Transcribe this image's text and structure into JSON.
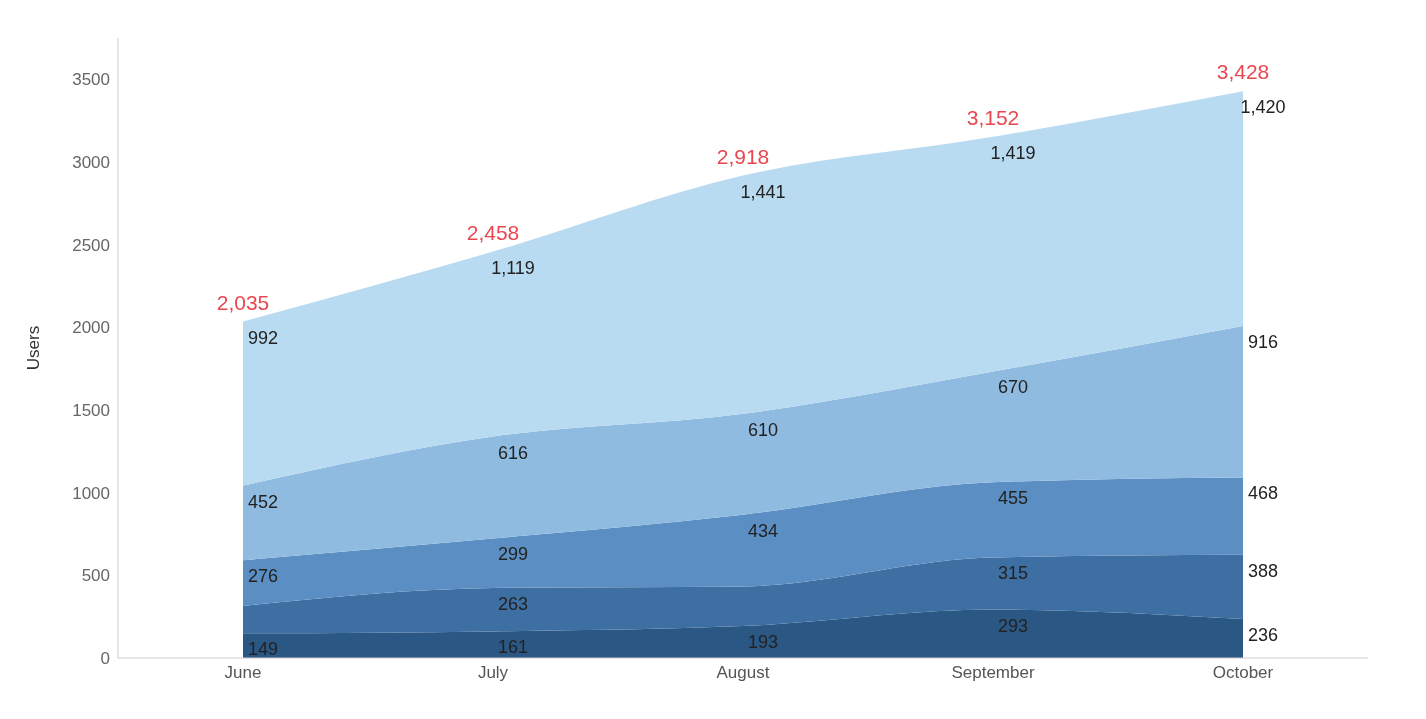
{
  "chart_data": {
    "type": "area",
    "stacked": true,
    "ylabel": "Users",
    "categories": [
      "June",
      "July",
      "August",
      "September",
      "October"
    ],
    "series": [
      {
        "color": "#2a5783",
        "values": [
          149,
          161,
          193,
          293,
          236
        ],
        "value_labels": [
          "149",
          "161",
          "193",
          "293",
          "236"
        ]
      },
      {
        "color": "#3d6fa3",
        "values": [
          166,
          263,
          240,
          315,
          388
        ],
        "value_labels": [
          null,
          "263",
          null,
          "315",
          "388"
        ]
      },
      {
        "color": "#5b8fc4",
        "values": [
          276,
          299,
          434,
          455,
          468
        ],
        "value_labels": [
          "276",
          "299",
          "434",
          "455",
          "468"
        ]
      },
      {
        "color": "#8fbbe0",
        "values": [
          452,
          616,
          610,
          670,
          916
        ],
        "value_labels": [
          "452",
          "616",
          "610",
          "670",
          "916"
        ]
      },
      {
        "color": "#b9dbf1",
        "values": [
          992,
          1119,
          1441,
          1419,
          1420
        ],
        "value_labels": [
          "992",
          "1,119",
          "1,441",
          "1,419",
          "1,420"
        ]
      }
    ],
    "totals": [
      "2,035",
      "2,458",
      "2,918",
      "3,152",
      "3,428"
    ],
    "ylim": [
      0,
      3750
    ],
    "yticks": [
      0,
      500,
      1000,
      1500,
      2000,
      2500,
      3000,
      3500
    ],
    "grid": false,
    "legend": false
  }
}
